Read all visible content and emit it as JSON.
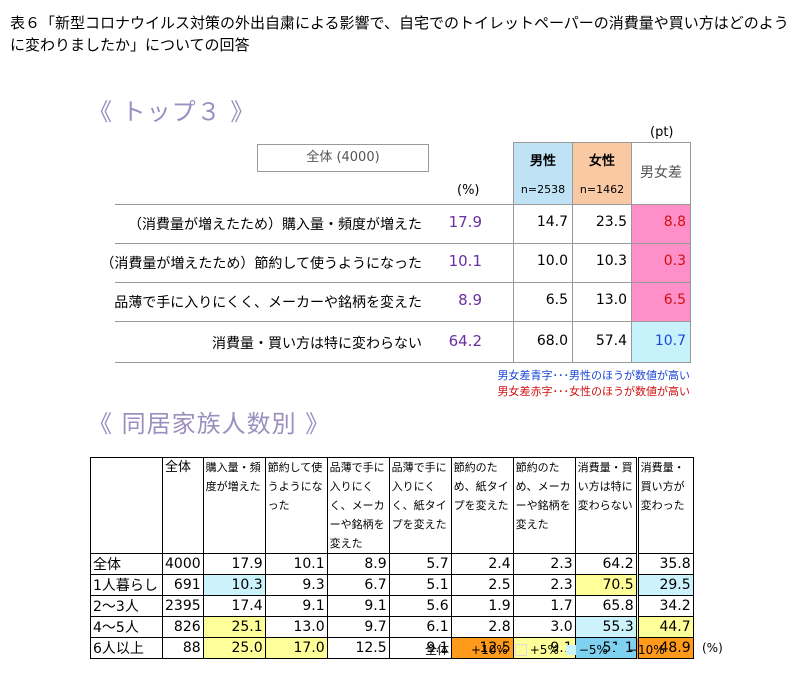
{
  "title": "表６「新型コロナウイルス対策の外出自粛による影響で、自宅でのトイレットペーパーの消費量や買い方はどのように変わりましたか」についての回答",
  "top3": {
    "heading": "《 トップ３ 》",
    "total_box": "全体 (4000)",
    "unit_pct": "(%)",
    "unit_pt": "(pt)",
    "male_label": "男性",
    "male_n": "n=2538",
    "female_label": "女性",
    "female_n": "n=1462",
    "diff_label": "男女差",
    "rows": [
      {
        "label": "（消費量が増えたため）購入量・頻度が増えた",
        "total": "17.9",
        "male": "14.7",
        "female": "23.5",
        "diff": "8.8",
        "diff_color": "pink"
      },
      {
        "label": "（消費量が増えたため）節約して使うようになった",
        "total": "10.1",
        "male": "10.0",
        "female": "10.3",
        "diff": "0.3",
        "diff_color": "pink"
      },
      {
        "label": "品薄で手に入りにくく、メーカーや銘柄を変えた",
        "total": "8.9",
        "male": "6.5",
        "female": "13.0",
        "diff": "6.5",
        "diff_color": "pink"
      },
      {
        "label": "消費量・買い方は特に変わらない",
        "total": "64.2",
        "male": "68.0",
        "female": "57.4",
        "diff": "10.7",
        "diff_color": "lightblue"
      }
    ],
    "note_blue": "男女差青字･･･男性のほうが数値が高い",
    "note_red": "男女差赤字･･･女性のほうが数値が高い",
    "colors": {
      "pink": "#ff8fc8",
      "lightblue": "#c7f2fb",
      "blue_text": "#1a47d8",
      "red_text": "#d01010"
    }
  },
  "household": {
    "heading": "《 同居家族人数別 》",
    "headers": [
      "全体",
      "購入量・頻度が増えた",
      "節約して使うようになった",
      "品薄で手に入りにくく、メーカーや銘柄を変えた",
      "品薄で手に入りにくく、紙タイプを変えた",
      "節約のため、紙タイプを変えた",
      "節約のため、メーカーや銘柄を変えた",
      "消費量・買い方は特に変わらない",
      "消費量・買い方が変わった"
    ],
    "rows": [
      {
        "label": "全体",
        "n": "4000",
        "values": [
          "17.9",
          "10.1",
          "8.9",
          "5.7",
          "2.4",
          "2.3",
          "64.2",
          "35.8"
        ],
        "colors": [
          "",
          "",
          "",
          "",
          "",
          "",
          "",
          ""
        ]
      },
      {
        "label": "1人暮らし",
        "n": "691",
        "values": [
          "10.3",
          "9.3",
          "6.7",
          "5.1",
          "2.5",
          "2.3",
          "70.5",
          "29.5"
        ],
        "colors": [
          "lb",
          "",
          "",
          "",
          "",
          "",
          "y",
          "lb"
        ]
      },
      {
        "label": "2〜3人",
        "n": "2395",
        "values": [
          "17.4",
          "9.1",
          "9.1",
          "5.6",
          "1.9",
          "1.7",
          "65.8",
          "34.2"
        ],
        "colors": [
          "",
          "",
          "",
          "",
          "",
          "",
          "",
          ""
        ]
      },
      {
        "label": "4〜5人",
        "n": "826",
        "values": [
          "25.1",
          "13.0",
          "9.7",
          "6.1",
          "2.8",
          "3.0",
          "55.3",
          "44.7"
        ],
        "colors": [
          "y",
          "",
          "",
          "",
          "",
          "",
          "lb",
          "y"
        ]
      },
      {
        "label": "6人以上",
        "n": "88",
        "values": [
          "25.0",
          "17.0",
          "12.5",
          "9.1",
          "12.5",
          "9.1",
          "51.1",
          "48.9"
        ],
        "colors": [
          "y",
          "y",
          "",
          "",
          "o",
          "y",
          "b",
          "o"
        ]
      }
    ],
    "legend": {
      "prefix": "全体",
      "items": [
        "+10%",
        "+5%",
        "−5%",
        "−10%"
      ],
      "unit": "(%)"
    },
    "colors": {
      "o": "#ff9a1a",
      "y": "#ffff99",
      "lb": "#ccf2fb",
      "b": "#7fd1f0"
    }
  }
}
